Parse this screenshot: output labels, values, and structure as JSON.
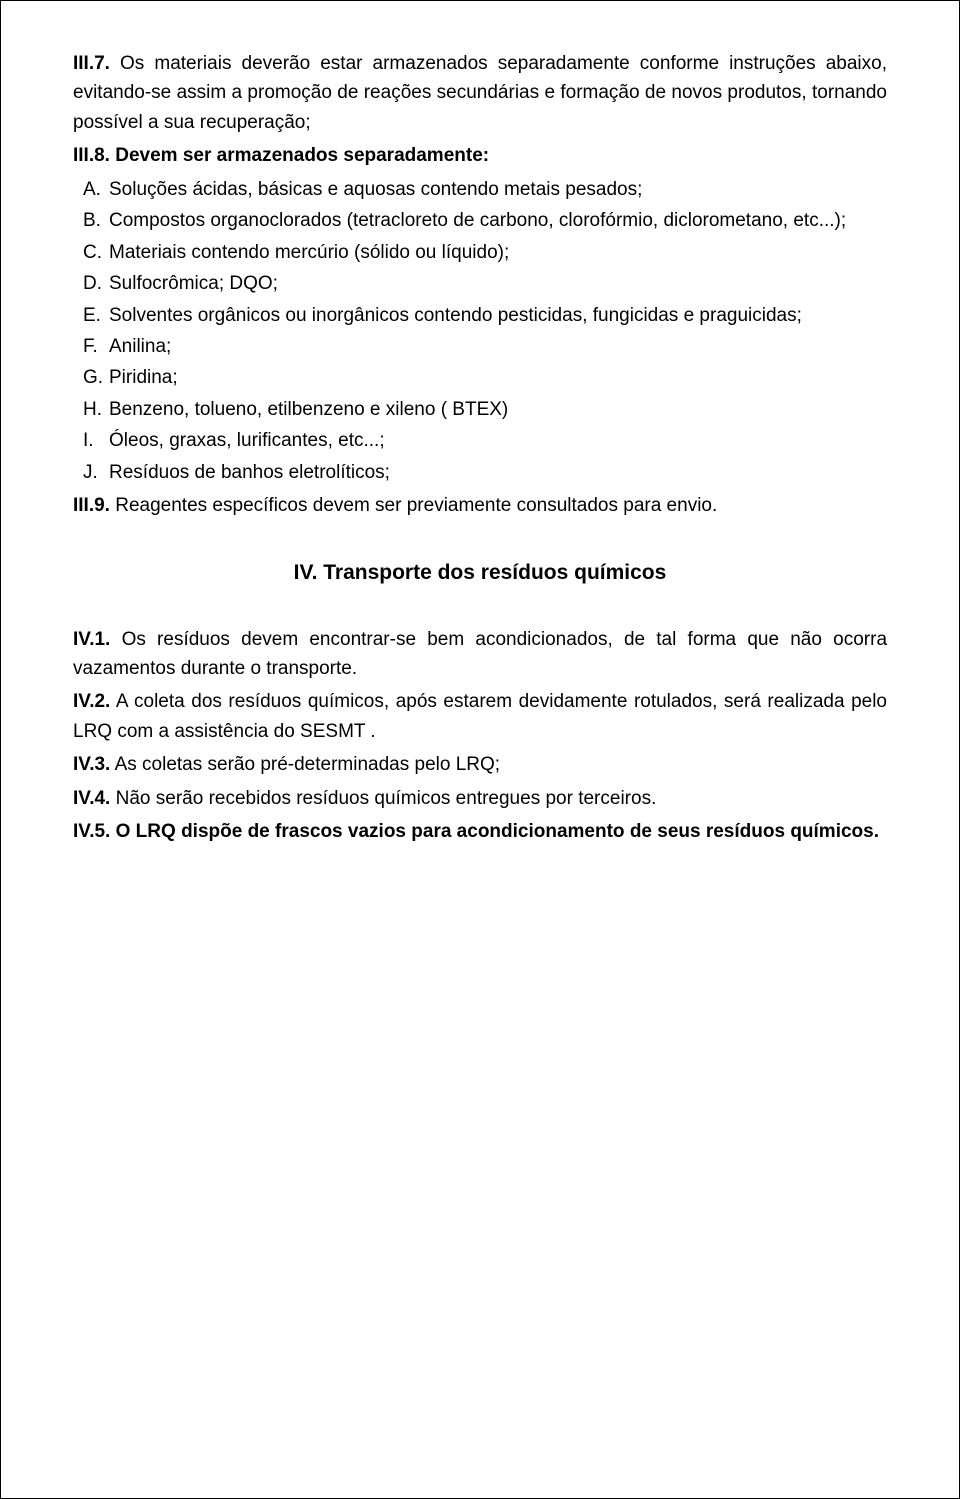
{
  "p_III7": {
    "label": "III.7.",
    "text": "Os materiais deverão estar armazenados separadamente conforme instruções abaixo, evitando-se assim a promoção de reações secundárias e formação de novos produtos, tornando possível a sua recuperação;"
  },
  "p_III8": {
    "label": "III.8.",
    "bold_text": "Devem ser armazenados separadamente:"
  },
  "list": {
    "A": {
      "marker": "A.",
      "text": "Soluções ácidas, básicas e aquosas contendo metais pesados;"
    },
    "B": {
      "marker": "B.",
      "text": "Compostos organoclorados (tetracloreto de carbono, clorofórmio, diclorometano, etc...);"
    },
    "C": {
      "marker": "C.",
      "text": "Materiais contendo mercúrio (sólido ou líquido);"
    },
    "D": {
      "marker": "D.",
      "text": "Sulfocrômica; DQO;"
    },
    "E": {
      "marker": "E.",
      "text": "Solventes orgânicos ou inorgânicos contendo pesticidas, fungicidas e praguicidas;"
    },
    "F": {
      "marker": "F.",
      "text": "Anilina;"
    },
    "G": {
      "marker": "G.",
      "text": "Piridina;"
    },
    "H": {
      "marker": "H.",
      "text": "Benzeno, tolueno, etilbenzeno e xileno ( BTEX)"
    },
    "I": {
      "marker": "I.",
      "text": "Óleos, graxas, lurificantes,  etc...;"
    },
    "J": {
      "marker": "J.",
      "text": "Resíduos de banhos eletrolíticos;"
    }
  },
  "p_III9": {
    "label": "III.9.",
    "text": "Reagentes específicos devem ser previamente consultados para envio."
  },
  "heading_IV": "IV. Transporte dos resíduos químicos",
  "p_IV1": {
    "label": "IV.1.",
    "text": "Os resíduos devem encontrar-se bem acondicionados, de tal forma que não ocorra vazamentos durante o transporte."
  },
  "p_IV2": {
    "label": "IV.2.",
    "text": "A coleta dos resíduos químicos, após estarem devidamente rotulados, será realizada pelo LRQ com a assistência do SESMT ."
  },
  "p_IV3": {
    "label": "IV.3.",
    "text": "As coletas serão pré-determinadas pelo LRQ;"
  },
  "p_IV4": {
    "label": "IV.4.",
    "text": "Não serão recebidos resíduos químicos entregues por terceiros."
  },
  "p_IV5": {
    "label": "IV.5.",
    "bold_text": "O LRQ dispõe de frascos vazios para acondicionamento de seus resíduos químicos."
  }
}
